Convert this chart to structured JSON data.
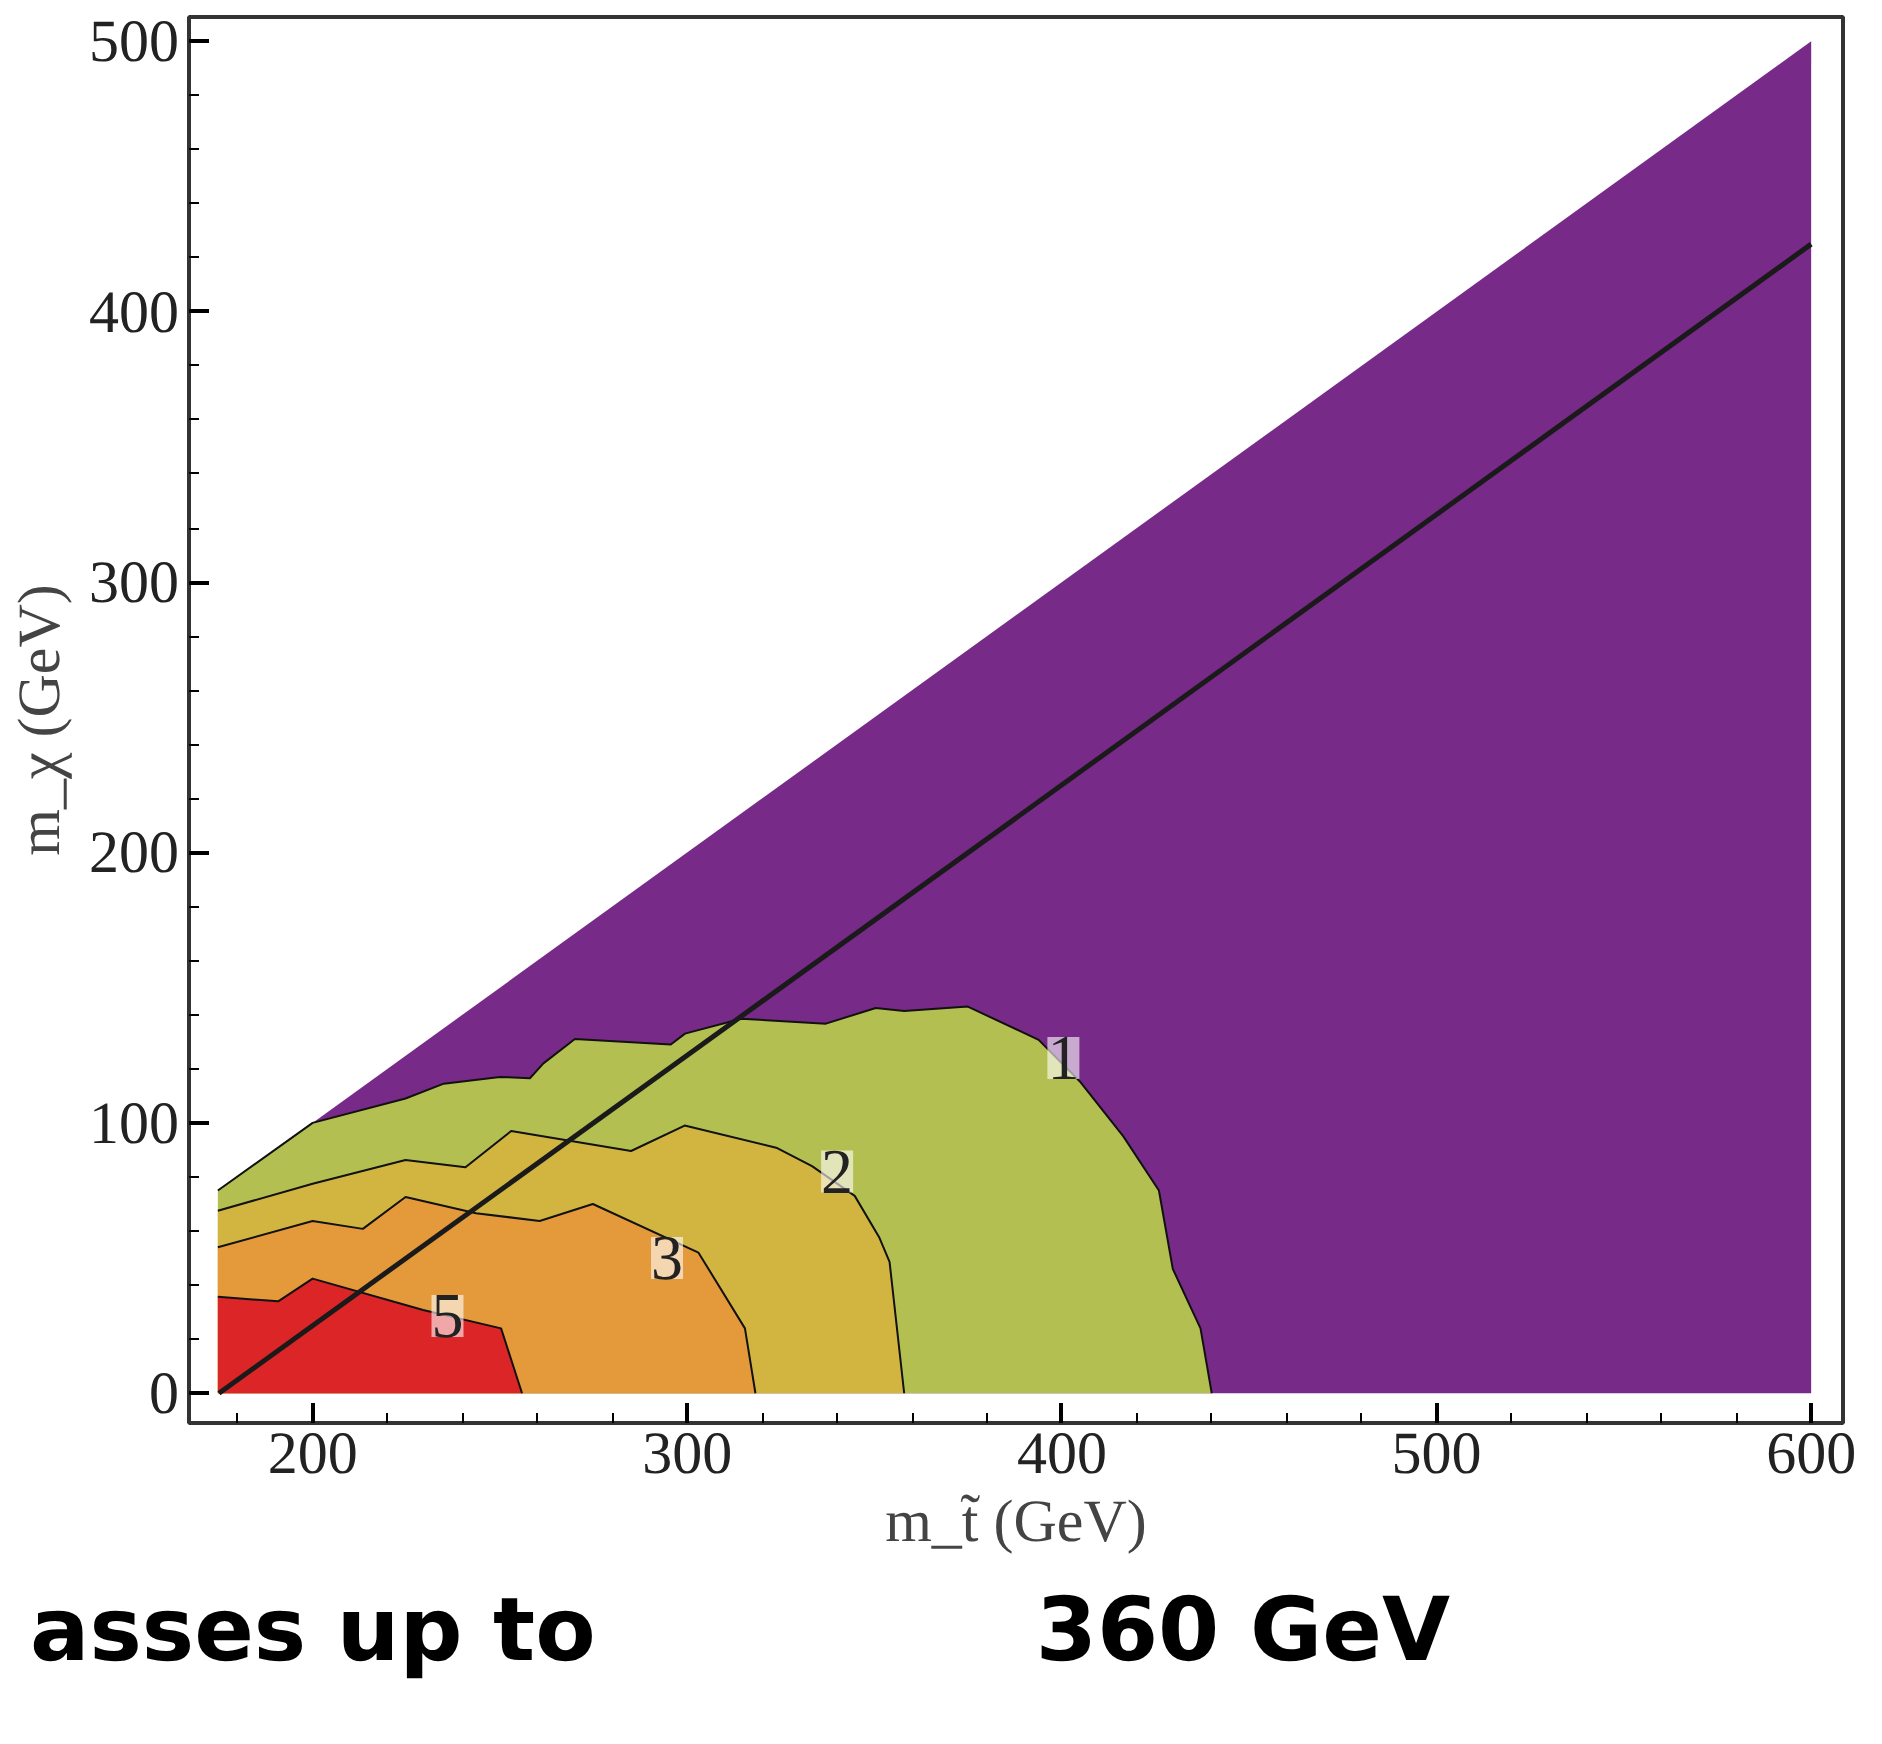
{
  "chart_data": {
    "type": "area",
    "xlabel": "m_t̃ (GeV)",
    "ylabel": "m_χ (GeV)",
    "xlim": [
      167,
      608.5
    ],
    "ylim": [
      -11,
      509
    ],
    "xticks": [
      200,
      300,
      400,
      500,
      600
    ],
    "yticks": [
      0,
      100,
      200,
      300,
      400,
      500
    ],
    "grid": false,
    "series": [
      {
        "color": "#772a87",
        "x": [
          175,
          600
        ],
        "values": [
          75,
          500
        ]
      },
      {
        "color": "#b3bf50",
        "x": [
          174.7,
          200,
          224.8,
          235,
          250,
          258,
          261.6,
          270,
          295.6,
          299.4,
          314.4,
          337,
          350.3,
          357.9,
          374.9,
          393.8,
          405,
          416.4,
          425.9,
          429.6,
          437,
          440
        ],
        "values": [
          75,
          100,
          109,
          114.5,
          117,
          116.5,
          122,
          131,
          129,
          133,
          138.5,
          136.7,
          142.5,
          141.4,
          143,
          130.7,
          115,
          95,
          75,
          46,
          24,
          0
        ]
      },
      {
        "color": "#d2b540",
        "x": [
          174.7,
          200,
          224.8,
          240.8,
          253,
          285,
          299.3,
          324,
          333.3,
          344.7,
          351.3,
          354,
          357.9
        ],
        "values": [
          67.5,
          77.5,
          86.3,
          83.6,
          97,
          89.6,
          99,
          90.7,
          84,
          73,
          57.5,
          48.6,
          0
        ]
      },
      {
        "color": "#e49a3b",
        "x": [
          174.7,
          200,
          213.4,
          224.8,
          243.6,
          260.6,
          274.8,
          303,
          315.4,
          318.2
        ],
        "values": [
          54,
          63.7,
          60.8,
          72.6,
          66.6,
          63.7,
          70,
          52,
          24,
          0
        ]
      },
      {
        "color": "#dc2526",
        "x": [
          174.7,
          190.8,
          200,
          229.5,
          250.3,
          255.9
        ],
        "values": [
          35.7,
          34,
          42.4,
          30.8,
          24,
          0
        ]
      },
      {
        "type": "line",
        "color": "#1a1a1a",
        "x": [
          175,
          600
        ],
        "values": [
          0,
          425
        ]
      }
    ],
    "annotations": [
      {
        "text": "1",
        "x": 400.4,
        "y": 124
      },
      {
        "text": "2",
        "x": 340,
        "y": 82
      },
      {
        "text": "3",
        "x": 294.6,
        "y": 50
      },
      {
        "text": "5",
        "x": 236,
        "y": 28.6
      },
      "asses up to",
      "360 GeV"
    ]
  }
}
